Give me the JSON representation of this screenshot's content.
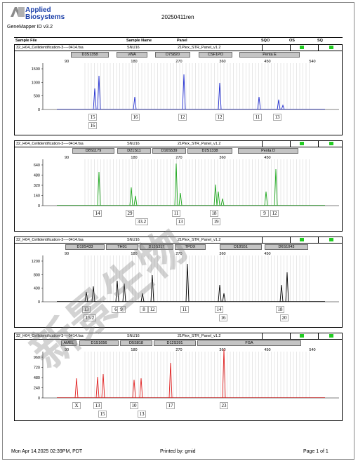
{
  "header": {
    "logo_text_line1": "Applied",
    "logo_text_line2": "Biosystems",
    "title": "20250411ren",
    "app_name": "GeneMapper ID v3.2"
  },
  "table_header": {
    "sample_file": "Sample File",
    "sample_name": "Sample Name",
    "panel": "Panel",
    "sqo": "SQO",
    "os": "OS",
    "sq": "SQ"
  },
  "panels": [
    {
      "sample_file": "32_H04_Cellidentification-3----0414.fsa",
      "sample_name": "SNU16",
      "panel": "21Plex_STR_Panel_v1.2",
      "color": "#1f2bd0",
      "y_ticks": [
        "1500",
        "1000",
        "500",
        "0"
      ],
      "x_ticks": [
        "90",
        "180",
        "270",
        "360",
        "450",
        "540"
      ],
      "markers": [
        "D3S1358",
        "vWA",
        "D7S820",
        "CSF1PO",
        "Penta E"
      ],
      "alleles": [
        "15",
        "16",
        "16",
        "12",
        "12",
        "11",
        "13"
      ]
    },
    {
      "sample_file": "32_H04_Cellidentification-3----0414.fsa",
      "sample_name": "SNU16",
      "panel": "21Plex_STR_Panel_v1.2",
      "color": "#1aa61a",
      "y_ticks": [
        "640",
        "480",
        "320",
        "160",
        "0"
      ],
      "x_ticks": [
        "90",
        "180",
        "270",
        "360",
        "450"
      ],
      "markers": [
        "D8S1179",
        "D21S11",
        "D16S539",
        "D2S1338",
        "Penta D"
      ],
      "alleles": [
        "14",
        "29",
        "33.2",
        "11",
        "13",
        "18",
        "19",
        "9",
        "12"
      ]
    },
    {
      "sample_file": "32_H04_Cellidentification-3----0414.fsa",
      "sample_name": "SNU16",
      "panel": "21Plex_STR_Panel_v1.2",
      "color": "#000000",
      "y_ticks": [
        "1200",
        "800",
        "400",
        "0"
      ],
      "x_ticks": [
        "90",
        "180",
        "270",
        "360",
        "450"
      ],
      "markers": [
        "D19S433",
        "TH01",
        "D13S317",
        "TPOX",
        "D18S51",
        "D6S1043"
      ],
      "alleles": [
        "13",
        "15.2",
        "6",
        "9",
        "8",
        "12",
        "11",
        "14",
        "16",
        "18",
        "20"
      ]
    },
    {
      "sample_file": "32_H04_Cellidentification-3----0414.fsa",
      "sample_name": "SNU16",
      "panel": "21Plex_STR_Panel_v1.2",
      "color": "#e02020",
      "y_ticks": [
        "960",
        "720",
        "480",
        "240",
        "0"
      ],
      "x_ticks": [
        "90",
        "180",
        "270",
        "360",
        "450",
        "540"
      ],
      "markers": [
        "AMEL",
        "D1S1656",
        "D5S818",
        "D12S391",
        "FGA"
      ],
      "alleles": [
        "X",
        "13",
        "15",
        "10",
        "13",
        "17",
        "23"
      ]
    }
  ],
  "footer": {
    "date": "Mon Apr 14,2025 02:39PM, PDT",
    "printed_by": "Printed by: gmid",
    "page": "Page 1 of 1"
  },
  "watermark": "新景生物"
}
